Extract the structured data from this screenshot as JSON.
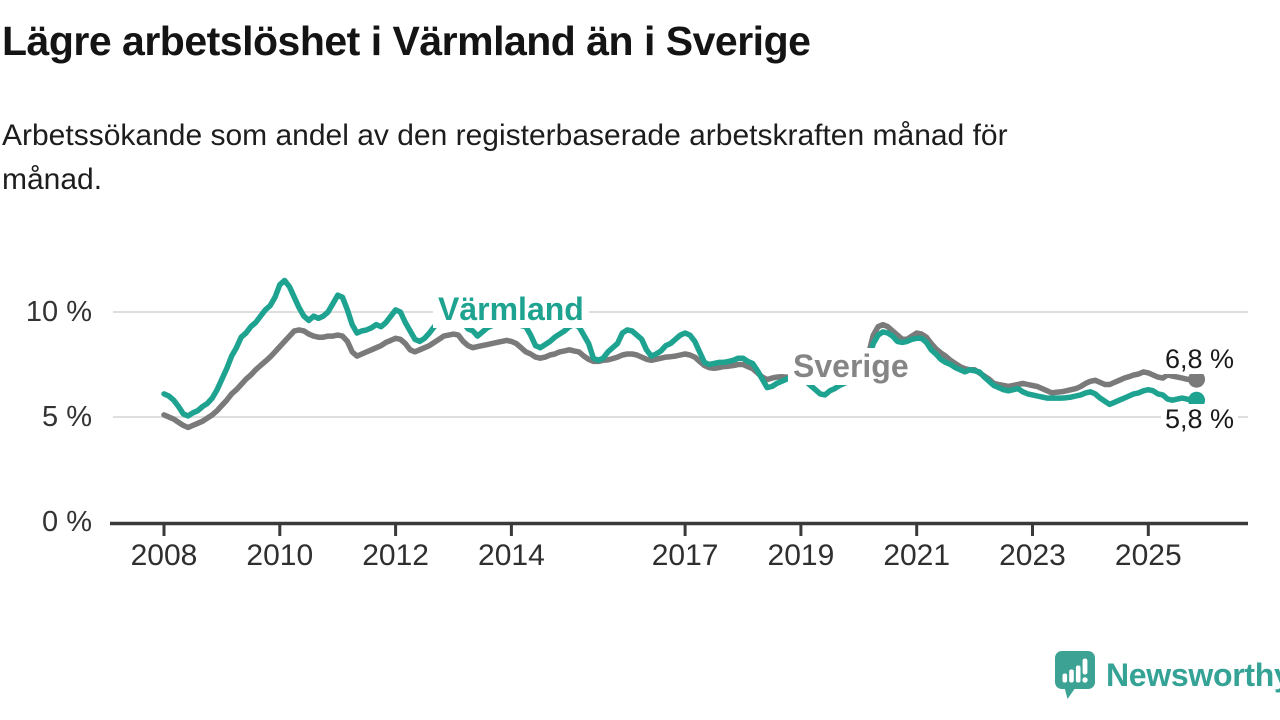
{
  "header": {
    "title": "Lägre arbetslöshet i Värmland än i Sverige",
    "subtitle_lines": [
      "Arbetssökande som andel av den registerbaserade arbetskraften månad för",
      "månad."
    ]
  },
  "colors": {
    "varmland": "#1FA391",
    "sverige": "#7A7A7A",
    "grid": "#DEDEDE",
    "axis": "#3A3A3A",
    "brand": "#3BA294"
  },
  "chart_data": {
    "type": "line",
    "x_unit": "month",
    "x_start": "2008-01",
    "x_end": "2025-11",
    "x_ticks": [
      2008,
      2010,
      2012,
      2014,
      2017,
      2019,
      2021,
      2023,
      2025
    ],
    "y_ticks": [
      {
        "value": 0,
        "label": "0 %"
      },
      {
        "value": 5,
        "label": "5 %"
      },
      {
        "value": 10,
        "label": "10 %"
      }
    ],
    "grid_values": [
      5,
      10
    ],
    "ylim": [
      0,
      12.5
    ],
    "legend_position": "inline-labels",
    "series": [
      {
        "name": "Sverige",
        "color": "#7A7A7A",
        "end_label": "6,8 %",
        "values": [
          5.1,
          5.0,
          4.9,
          4.75,
          4.6,
          4.5,
          4.6,
          4.7,
          4.8,
          4.95,
          5.1,
          5.3,
          5.55,
          5.8,
          6.1,
          6.3,
          6.55,
          6.8,
          7.0,
          7.25,
          7.45,
          7.65,
          7.85,
          8.1,
          8.35,
          8.6,
          8.85,
          9.1,
          9.15,
          9.1,
          8.95,
          8.85,
          8.8,
          8.8,
          8.85,
          8.85,
          8.9,
          8.85,
          8.6,
          8.1,
          7.9,
          8.0,
          8.1,
          8.2,
          8.3,
          8.4,
          8.55,
          8.65,
          8.75,
          8.7,
          8.5,
          8.2,
          8.1,
          8.2,
          8.3,
          8.4,
          8.55,
          8.7,
          8.85,
          8.9,
          8.95,
          8.9,
          8.6,
          8.4,
          8.3,
          8.35,
          8.4,
          8.45,
          8.5,
          8.55,
          8.6,
          8.65,
          8.6,
          8.5,
          8.3,
          8.1,
          8.0,
          7.85,
          7.8,
          7.85,
          7.95,
          8.0,
          8.1,
          8.15,
          8.2,
          8.15,
          8.1,
          7.9,
          7.75,
          7.65,
          7.65,
          7.7,
          7.72,
          7.78,
          7.85,
          7.95,
          8.0,
          8.0,
          7.95,
          7.85,
          7.75,
          7.7,
          7.75,
          7.8,
          7.85,
          7.87,
          7.9,
          7.95,
          8.0,
          7.95,
          7.85,
          7.65,
          7.45,
          7.35,
          7.32,
          7.35,
          7.4,
          7.42,
          7.45,
          7.5,
          7.5,
          7.4,
          7.3,
          7.1,
          6.9,
          6.78,
          6.85,
          6.9,
          6.92,
          6.9,
          6.88,
          6.9,
          6.9,
          6.85,
          6.8,
          6.72,
          6.65,
          6.68,
          6.7,
          6.72,
          6.75,
          6.8,
          6.9,
          7.0,
          7.1,
          7.2,
          8.0,
          8.9,
          9.3,
          9.4,
          9.3,
          9.1,
          8.9,
          8.7,
          8.7,
          8.85,
          9.0,
          8.95,
          8.8,
          8.5,
          8.25,
          8.05,
          7.9,
          7.7,
          7.55,
          7.4,
          7.3,
          7.25,
          7.25,
          7.1,
          6.95,
          6.8,
          6.6,
          6.55,
          6.5,
          6.45,
          6.5,
          6.55,
          6.6,
          6.55,
          6.5,
          6.45,
          6.35,
          6.25,
          6.15,
          6.18,
          6.2,
          6.25,
          6.3,
          6.35,
          6.45,
          6.6,
          6.7,
          6.75,
          6.65,
          6.55,
          6.55,
          6.65,
          6.75,
          6.85,
          6.92,
          7.0,
          7.05,
          7.15,
          7.1,
          7.0,
          6.9,
          6.85,
          7.0,
          6.95,
          6.9,
          6.85,
          6.8,
          6.78,
          6.8
        ]
      },
      {
        "name": "Värmland",
        "color": "#1FA391",
        "end_label": "5,8 %",
        "values": [
          6.1,
          6.0,
          5.8,
          5.5,
          5.15,
          5.05,
          5.2,
          5.3,
          5.5,
          5.65,
          5.9,
          6.3,
          6.8,
          7.3,
          7.9,
          8.3,
          8.8,
          9.0,
          9.3,
          9.5,
          9.8,
          10.1,
          10.3,
          10.7,
          11.3,
          11.5,
          11.2,
          10.7,
          10.2,
          9.8,
          9.6,
          9.8,
          9.7,
          9.8,
          10.0,
          10.4,
          10.8,
          10.7,
          10.1,
          9.4,
          9.0,
          9.1,
          9.15,
          9.25,
          9.4,
          9.3,
          9.5,
          9.8,
          10.1,
          10.0,
          9.5,
          9.1,
          8.7,
          8.6,
          8.75,
          9.0,
          9.3,
          9.5,
          9.7,
          9.85,
          9.9,
          9.8,
          9.5,
          9.2,
          9.1,
          8.85,
          9.05,
          9.25,
          9.35,
          9.4,
          9.4,
          9.45,
          9.5,
          9.45,
          9.35,
          9.3,
          8.9,
          8.4,
          8.3,
          8.45,
          8.6,
          8.8,
          8.95,
          9.1,
          9.3,
          9.4,
          9.3,
          8.9,
          8.5,
          7.8,
          7.7,
          7.8,
          8.1,
          8.3,
          8.5,
          9.0,
          9.15,
          9.1,
          8.9,
          8.7,
          8.2,
          7.9,
          8.0,
          8.15,
          8.4,
          8.5,
          8.7,
          8.9,
          9.0,
          8.9,
          8.6,
          8.1,
          7.6,
          7.5,
          7.55,
          7.6,
          7.6,
          7.65,
          7.7,
          7.8,
          7.8,
          7.65,
          7.55,
          7.2,
          6.8,
          6.4,
          6.45,
          6.6,
          6.7,
          6.8,
          6.9,
          6.9,
          6.85,
          6.7,
          6.5,
          6.3,
          6.1,
          6.05,
          6.25,
          6.35,
          6.5,
          6.6,
          6.7,
          6.8,
          6.9,
          7.0,
          7.7,
          8.5,
          8.9,
          9.05,
          9.0,
          8.85,
          8.6,
          8.55,
          8.6,
          8.7,
          8.75,
          8.75,
          8.55,
          8.2,
          8.0,
          7.75,
          7.6,
          7.5,
          7.35,
          7.25,
          7.15,
          7.25,
          7.2,
          7.15,
          6.9,
          6.7,
          6.5,
          6.4,
          6.3,
          6.25,
          6.3,
          6.35,
          6.2,
          6.1,
          6.05,
          6.0,
          5.95,
          5.9,
          5.9,
          5.9,
          5.9,
          5.92,
          5.95,
          6.0,
          6.05,
          6.15,
          6.2,
          6.1,
          5.9,
          5.75,
          5.6,
          5.7,
          5.8,
          5.9,
          6.0,
          6.1,
          6.15,
          6.25,
          6.3,
          6.25,
          6.1,
          6.05,
          5.85,
          5.8,
          5.85,
          5.9,
          5.85,
          5.8,
          5.8
        ]
      }
    ]
  },
  "annotations": {
    "varmland_line_label": "Värmland",
    "sverige_line_label": "Sverige",
    "sverige_end_value": "6,8 %",
    "varmland_end_value": "5,8 %"
  },
  "footer": {
    "brand_name": "Newsworthy"
  }
}
